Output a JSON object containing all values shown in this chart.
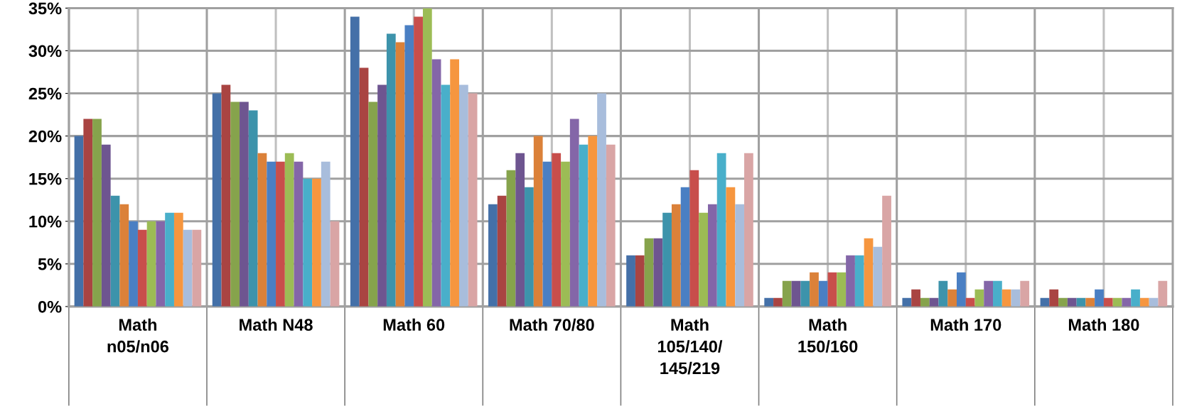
{
  "chart_data": {
    "type": "bar",
    "categories": [
      "Math n05/n06",
      "Math N48",
      "Math 60",
      "Math 70/80",
      "Math 105/140/145/219",
      "Math 150/160",
      "Math 170",
      "Math 180"
    ],
    "series": [
      {
        "color": "#4470a8",
        "values": [
          20,
          25,
          34,
          12,
          6,
          1,
          1,
          1
        ]
      },
      {
        "color": "#a94442",
        "values": [
          22,
          26,
          28,
          13,
          6,
          1,
          2,
          2
        ]
      },
      {
        "color": "#86a34c",
        "values": [
          22,
          24,
          24,
          16,
          8,
          3,
          1,
          1
        ]
      },
      {
        "color": "#6e5590",
        "values": [
          19,
          24,
          26,
          18,
          8,
          3,
          1,
          1
        ]
      },
      {
        "color": "#3d93ab",
        "values": [
          13,
          23,
          32,
          14,
          11,
          3,
          3,
          1
        ]
      },
      {
        "color": "#db8139",
        "values": [
          12,
          18,
          31,
          20,
          12,
          4,
          2,
          1
        ]
      },
      {
        "color": "#4a7fc3",
        "values": [
          10,
          17,
          33,
          17,
          14,
          3,
          4,
          2
        ]
      },
      {
        "color": "#c84e4b",
        "values": [
          9,
          17,
          34,
          18,
          16,
          4,
          1,
          1
        ]
      },
      {
        "color": "#9cbc55",
        "values": [
          10,
          18,
          35,
          17,
          11,
          4,
          2,
          1
        ]
      },
      {
        "color": "#8466a8",
        "values": [
          10,
          17,
          29,
          22,
          12,
          6,
          3,
          1
        ]
      },
      {
        "color": "#49afca",
        "values": [
          11,
          15,
          26,
          19,
          18,
          6,
          3,
          2
        ]
      },
      {
        "color": "#f6963f",
        "values": [
          11,
          15,
          29,
          20,
          14,
          8,
          2,
          1
        ]
      },
      {
        "color": "#a8bddc",
        "values": [
          9,
          17,
          26,
          25,
          12,
          7,
          2,
          1
        ]
      },
      {
        "color": "#d9a5a5",
        "values": [
          9,
          10,
          25,
          19,
          18,
          13,
          3,
          3
        ]
      }
    ],
    "ylim": [
      0,
      35
    ],
    "yticks": [
      {
        "value": 0,
        "label": "0%"
      },
      {
        "value": 5,
        "label": "5%"
      },
      {
        "value": 10,
        "label": "10%"
      },
      {
        "value": 15,
        "label": "15%"
      },
      {
        "value": 20,
        "label": "20%"
      },
      {
        "value": 25,
        "label": "25%"
      },
      {
        "value": 30,
        "label": "30%"
      },
      {
        "value": 35,
        "label": "35%"
      }
    ],
    "grid": true
  }
}
